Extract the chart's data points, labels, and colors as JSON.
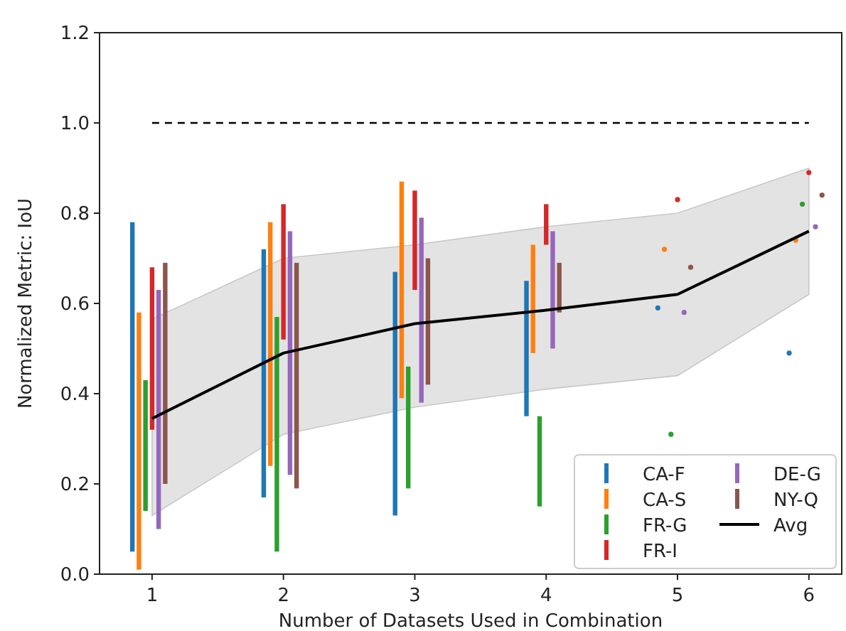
{
  "chart_data": {
    "type": "bar",
    "xlabel": "Number of Datasets Used in Combination",
    "ylabel": "Normalized Metric: IoU",
    "xlim": [
      0.6,
      6.25
    ],
    "xticks": [
      1,
      2,
      3,
      4,
      5,
      6
    ],
    "ylim": [
      0,
      1.2
    ],
    "yticks": [
      {
        "value": 0,
        "label": "0.0"
      },
      {
        "value": 0.2,
        "label": "0.2"
      },
      {
        "value": 0.4,
        "label": "0.4"
      },
      {
        "value": 0.6,
        "label": "0.6"
      },
      {
        "value": 0.8,
        "label": "0.8"
      },
      {
        "value": 1.0,
        "label": "1.0"
      },
      {
        "value": 1.2,
        "label": "1.2"
      }
    ],
    "grid": false,
    "legend": "bottom right",
    "ref_lines": [
      {
        "axis": "y",
        "value": 1.0,
        "color": "#000000",
        "line_style": "dashed"
      }
    ],
    "series": [
      {
        "name": "CA-F",
        "color": "#1f77b4",
        "x": [
          1,
          2,
          3,
          4
        ],
        "base": [
          0.05,
          0.17,
          0.13,
          0.35
        ],
        "values": [
          0.73,
          0.55,
          0.54,
          0.3
        ]
      },
      {
        "name": "CA-S",
        "color": "#ff7f0e",
        "x": [
          1,
          2,
          3,
          4
        ],
        "base": [
          0.01,
          0.24,
          0.39,
          0.49
        ],
        "values": [
          0.57,
          0.54,
          0.48,
          0.24
        ]
      },
      {
        "name": "FR-G",
        "color": "#2ca02c",
        "x": [
          1,
          2,
          3,
          4
        ],
        "base": [
          0.14,
          0.05,
          0.19,
          0.15
        ],
        "values": [
          0.29,
          0.52,
          0.27,
          0.2
        ]
      },
      {
        "name": "FR-I",
        "color": "#d62728",
        "x": [
          1,
          2,
          3,
          4
        ],
        "base": [
          0.32,
          0.52,
          0.63,
          0.73
        ],
        "values": [
          0.36,
          0.3,
          0.22,
          0.09
        ]
      },
      {
        "name": "DE-G",
        "color": "#9467bd",
        "x": [
          1,
          2,
          3,
          4
        ],
        "base": [
          0.1,
          0.22,
          0.38,
          0.5
        ],
        "values": [
          0.53,
          0.54,
          0.41,
          0.26
        ]
      },
      {
        "name": "NY-Q",
        "color": "#8c564b",
        "x": [
          1,
          2,
          3,
          4
        ],
        "base": [
          0.2,
          0.19,
          0.42,
          0.58
        ],
        "values": [
          0.49,
          0.5,
          0.28,
          0.11
        ]
      },
      {
        "type": "scatter",
        "color": "#1f77b4",
        "x": [
          4.85,
          5.85
        ],
        "values": [
          0.59,
          0.49
        ]
      },
      {
        "type": "scatter",
        "color": "#ff7f0e",
        "x": [
          4.9,
          5.9
        ],
        "values": [
          0.72,
          0.74
        ]
      },
      {
        "type": "scatter",
        "color": "#2ca02c",
        "x": [
          4.95,
          5.95
        ],
        "values": [
          0.31,
          0.82
        ]
      },
      {
        "type": "scatter",
        "color": "#d62728",
        "x": [
          5,
          6
        ],
        "values": [
          0.83,
          0.89
        ]
      },
      {
        "type": "scatter",
        "color": "#9467bd",
        "x": [
          5.05,
          6.05
        ],
        "values": [
          0.58,
          0.77
        ]
      },
      {
        "type": "scatter",
        "color": "#8c564b",
        "x": [
          5.1,
          6.1
        ],
        "values": [
          0.68,
          0.84
        ]
      },
      {
        "name": "Avg",
        "type": "line",
        "color": "#000000",
        "x": [
          1,
          2,
          3,
          4,
          5,
          6
        ],
        "values": [
          0.345,
          0.49,
          0.555,
          0.585,
          0.62,
          0.76
        ],
        "lower": [
          0.13,
          0.31,
          0.37,
          0.41,
          0.44,
          0.62
        ],
        "upper": [
          0.565,
          0.7,
          0.73,
          0.77,
          0.8,
          0.9
        ]
      }
    ]
  }
}
